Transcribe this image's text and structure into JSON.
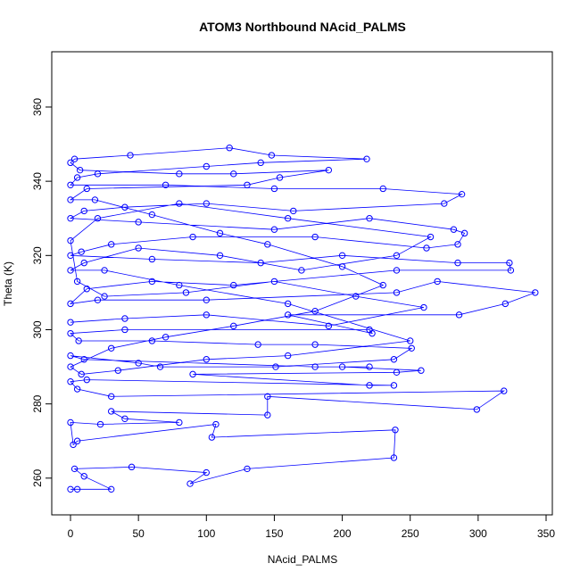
{
  "chart_data": {
    "type": "line",
    "title": "ATOM3 Northbound NAcid_PALMS",
    "x_label": "NAcid_PALMS",
    "y_label": "Theta (K)",
    "xlim": [
      -13.8,
      354.6
    ],
    "ylim": [
      250.1,
      374.9
    ],
    "xticks": [
      0,
      50,
      100,
      150,
      200,
      250,
      300,
      350
    ],
    "yticks": [
      260,
      280,
      300,
      320,
      340,
      360
    ],
    "x": [
      0,
      5,
      30,
      10,
      3,
      45,
      100,
      88,
      130,
      238,
      239,
      104,
      107,
      5,
      2,
      0,
      22,
      80,
      40,
      30,
      145,
      145,
      299,
      319,
      30,
      5,
      0,
      12,
      238,
      220,
      90,
      240,
      258,
      200,
      220,
      180,
      10,
      0,
      50,
      66,
      151,
      238,
      251,
      180,
      138,
      60,
      6,
      0,
      40,
      220,
      222,
      160,
      286,
      320,
      342,
      270,
      240,
      100,
      20,
      0,
      12,
      60,
      120,
      240,
      324,
      323,
      285,
      200,
      140,
      60,
      0,
      8,
      30,
      90,
      180,
      262,
      285,
      290,
      282,
      220,
      150,
      50,
      0,
      10,
      40,
      100,
      164,
      275,
      288,
      230,
      150,
      70,
      0,
      5,
      20,
      100,
      140,
      218,
      148,
      117,
      44,
      3,
      0,
      7,
      80,
      120,
      190,
      154,
      130,
      12,
      0,
      18,
      60,
      110,
      145,
      200,
      230,
      180,
      120,
      70,
      30,
      0,
      8,
      35,
      100,
      160,
      250,
      160,
      80,
      25,
      0,
      10,
      50,
      110,
      170,
      240,
      265,
      160,
      80,
      20,
      0,
      5,
      25,
      85,
      150,
      210,
      260,
      190,
      100,
      40,
      0
    ],
    "series": [
      {
        "name": "NAcid_PALMS",
        "color": "#0000ff",
        "values": [
          257,
          257,
          257,
          260.5,
          262.5,
          263,
          261.5,
          258.5,
          262.5,
          265.5,
          273,
          271,
          274.5,
          270,
          269,
          275,
          274.5,
          275,
          276,
          278,
          277,
          282,
          278.5,
          283.5,
          282,
          284,
          286,
          286.5,
          285,
          285,
          288,
          288.5,
          289,
          290,
          290,
          290,
          292,
          293,
          291,
          290,
          290,
          292,
          295,
          296,
          296,
          297,
          297,
          299,
          300,
          300,
          299,
          304,
          304,
          307,
          310,
          313,
          310,
          308,
          308,
          307,
          311,
          313,
          312,
          316,
          316,
          318,
          318,
          320,
          318,
          319,
          320,
          321,
          323,
          325,
          325,
          322,
          323,
          326,
          327,
          330,
          327,
          329,
          330,
          332,
          333,
          334,
          332,
          334,
          336.5,
          338,
          338,
          339,
          339,
          341,
          342,
          344,
          345,
          346,
          347,
          349,
          347,
          346,
          345,
          343,
          342,
          342,
          343,
          341,
          339,
          338,
          335,
          335,
          331,
          326,
          323,
          317,
          312,
          305,
          301,
          298,
          295,
          290,
          288,
          289,
          292,
          293,
          297,
          307,
          312,
          316,
          316,
          318,
          322,
          320,
          316,
          320,
          325,
          330,
          334,
          330,
          324,
          313,
          309,
          310,
          313,
          309,
          306,
          301,
          304,
          303,
          302
        ]
      }
    ]
  }
}
